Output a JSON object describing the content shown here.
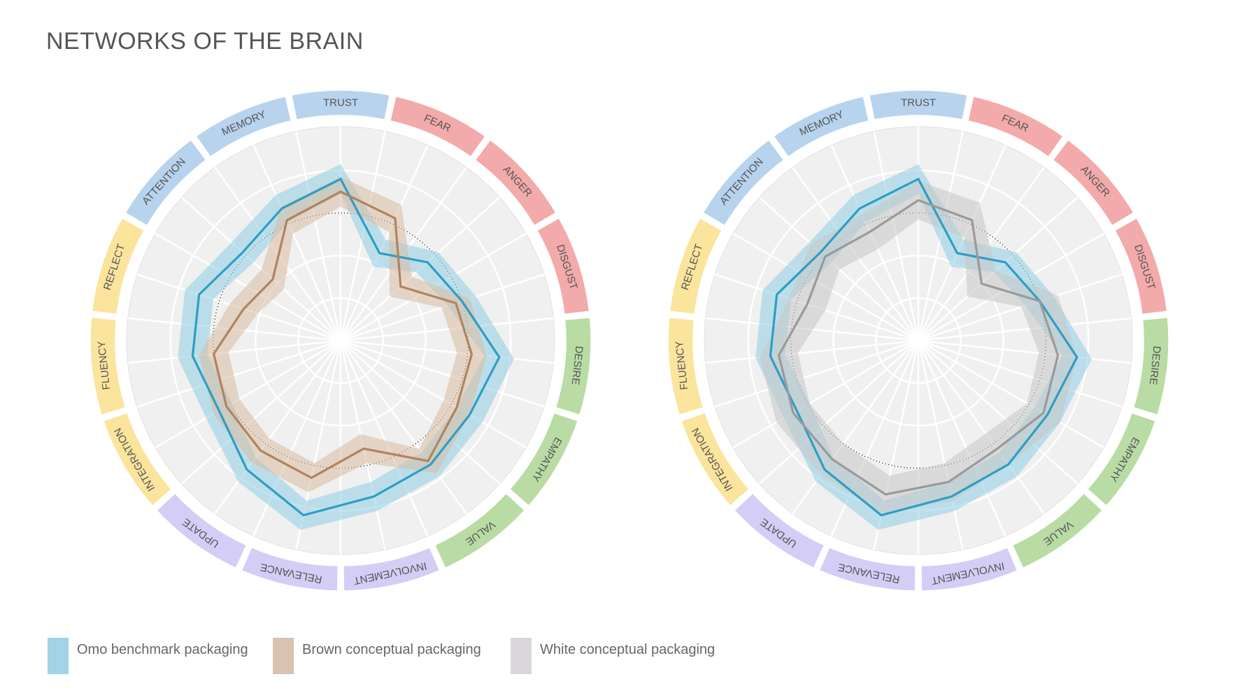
{
  "title": "NETWORKS OF THE BRAIN",
  "colors": {
    "trust_group": "#b7d3ee",
    "threat_group": "#f3aaaa",
    "reward_group": "#b8dca4",
    "update_group": "#d4cdf6",
    "integrate_group": "#fbe49c",
    "omo": "#2e9ec4",
    "omo_band": "#8fcde3",
    "brown": "#b1835e",
    "brown_band": "#d9bca3",
    "white": "#9a9a9a",
    "white_band": "#c7c7c7"
  },
  "legend": [
    {
      "label": "Omo benchmark packaging",
      "color": "#a3d3e6"
    },
    {
      "label": "Brown conceptual packaging",
      "color": "#d8c2b0"
    },
    {
      "label": "White conceptual packaging",
      "color": "#d9d7da"
    }
  ],
  "chart_data": [
    {
      "type": "radar",
      "axes": [
        "TRUST",
        "FEAR",
        "ANGER",
        "DISGUST",
        "DESIRE",
        "EMPATHY",
        "VALUE",
        "INVOLVEMENT",
        "RELEVANCE",
        "UPDATE",
        "INTEGRATION",
        "FLUENCY",
        "REFLECT",
        "ATTENTION",
        "MEMORY"
      ],
      "axis_groups": [
        "trust",
        "threat",
        "threat",
        "threat",
        "reward",
        "reward",
        "reward",
        "update",
        "update",
        "update",
        "integrate",
        "integrate",
        "integrate",
        "trust",
        "trust"
      ],
      "reference_circle": 0.6,
      "rings": 5,
      "ylim": [
        0,
        1
      ],
      "series": [
        {
          "name": "Omo benchmark packaging",
          "values": [
            0.76,
            0.45,
            0.55,
            0.6,
            0.75,
            0.7,
            0.72,
            0.75,
            0.84,
            0.75,
            0.66,
            0.7,
            0.7,
            0.62,
            0.68
          ],
          "band": 0.07
        },
        {
          "name": "Brown conceptual packaging",
          "values": [
            0.7,
            0.63,
            0.38,
            0.57,
            0.62,
            0.63,
            0.7,
            0.52,
            0.66,
            0.64,
            0.62,
            0.6,
            0.48,
            0.43,
            0.62
          ],
          "band": 0.07
        }
      ]
    },
    {
      "type": "radar",
      "axes": [
        "TRUST",
        "FEAR",
        "ANGER",
        "DISGUST",
        "DESIRE",
        "EMPATHY",
        "VALUE",
        "INVOLVEMENT",
        "RELEVANCE",
        "UPDATE",
        "INTEGRATION",
        "FLUENCY",
        "REFLECT",
        "ATTENTION",
        "MEMORY"
      ],
      "axis_groups": [
        "trust",
        "threat",
        "threat",
        "threat",
        "reward",
        "reward",
        "reward",
        "update",
        "update",
        "update",
        "integrate",
        "integrate",
        "integrate",
        "trust",
        "trust"
      ],
      "reference_circle": 0.6,
      "rings": 5,
      "ylim": [
        0,
        1
      ],
      "series": [
        {
          "name": "Omo benchmark packaging",
          "values": [
            0.76,
            0.45,
            0.55,
            0.6,
            0.75,
            0.7,
            0.72,
            0.75,
            0.84,
            0.75,
            0.66,
            0.7,
            0.7,
            0.62,
            0.68
          ],
          "band": 0.07
        },
        {
          "name": "White conceptual packaging",
          "values": [
            0.66,
            0.62,
            0.4,
            0.6,
            0.66,
            0.68,
            0.63,
            0.68,
            0.74,
            0.69,
            0.68,
            0.66,
            0.55,
            0.59,
            0.56
          ],
          "band": 0.09
        }
      ]
    }
  ]
}
